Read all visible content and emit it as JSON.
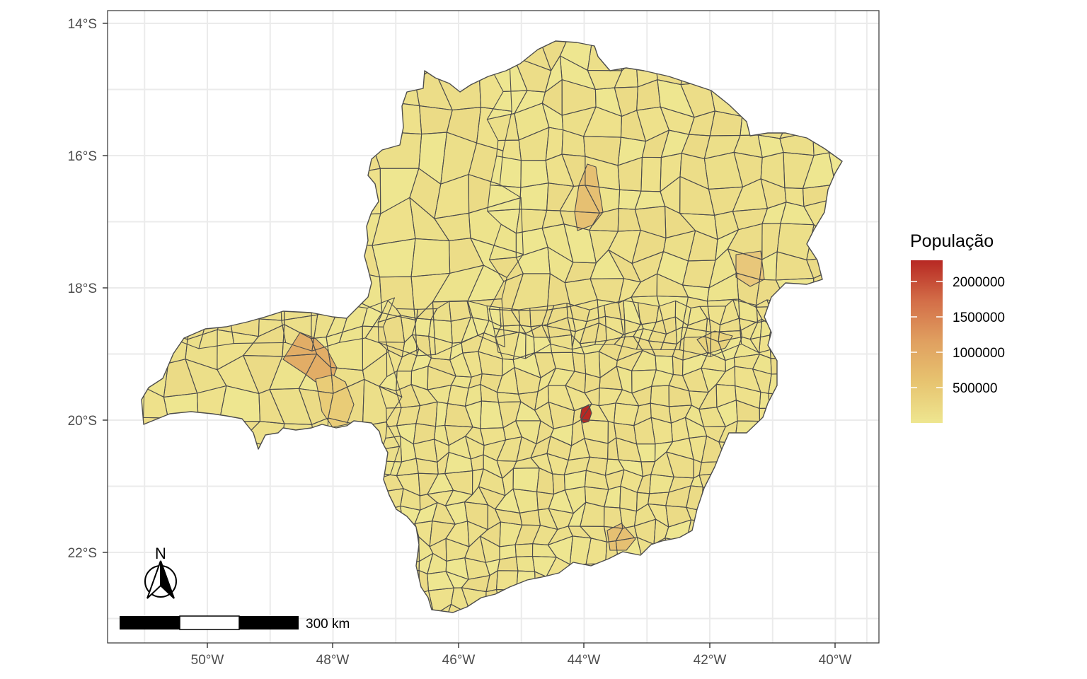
{
  "map": {
    "region": "Minas Gerais",
    "x_axis_labels": [
      "50°W",
      "48°W",
      "46°W",
      "44°W",
      "42°W",
      "40°W"
    ],
    "x_axis_values": [
      -50,
      -48,
      -46,
      -44,
      -42,
      -40
    ],
    "y_axis_labels": [
      "14°S",
      "16°S",
      "18°S",
      "20°S",
      "22°S"
    ],
    "y_axis_values": [
      -14,
      -16,
      -18,
      -20,
      -22
    ],
    "lon_range": [
      -51.35,
      -39.1
    ],
    "lat_range": [
      -23.35,
      -13.8
    ],
    "grid": true,
    "panel_background": "#ffffff",
    "grid_color": "#ebebeb",
    "boundary_color": "#4d4d4d"
  },
  "legend": {
    "title": "População",
    "labels": [
      "2000000",
      "1500000",
      "1000000",
      "500000"
    ],
    "values": [
      2000000,
      1500000,
      1000000,
      500000
    ],
    "range": [
      0,
      2300000
    ],
    "colors": [
      "#eee690",
      "#e7c470",
      "#e0a060",
      "#d36e48",
      "#b72823"
    ],
    "position": "right"
  },
  "scale_bar": {
    "label": "300 km"
  },
  "north_arrow": {
    "label": "N"
  },
  "highlighted_municipalities": [
    {
      "value": 2300000,
      "color": "#b72823"
    },
    {
      "value": 600000,
      "color": "#e6c072"
    },
    {
      "value": 660000,
      "color": "#e2ad66"
    },
    {
      "value": 340000,
      "color": "#e9cc77"
    },
    {
      "value": 250000,
      "color": "#e8d27c"
    },
    {
      "value": 560000,
      "color": "#e6c072"
    },
    {
      "value": 400000,
      "color": "#e8c77a"
    }
  ]
}
